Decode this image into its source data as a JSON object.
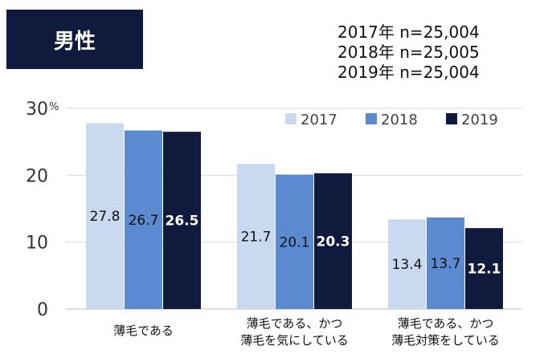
{
  "badge": {
    "label": "男性"
  },
  "sample_sizes": [
    "2017年 n=25,004",
    "2018年 n=25,005",
    "2019年 n=25,004"
  ],
  "colors": {
    "2017": "#c9d9f0",
    "2018": "#5b8ad0",
    "2019": "#0f1a3d",
    "badge": "#0f1a3d",
    "grid": "#d9d9d9"
  },
  "chart_data": {
    "type": "bar",
    "title": "",
    "xlabel": "",
    "ylabel": "",
    "ylim": [
      0,
      30
    ],
    "y_ticks": [
      "0",
      "10",
      "20",
      "30"
    ],
    "y_unit": "%",
    "grid": true,
    "legend_position": "top-right",
    "categories": [
      [
        "薄毛である"
      ],
      [
        "薄毛である、かつ",
        "薄毛を気にしている"
      ],
      [
        "薄毛である、かつ",
        "薄毛対策をしている"
      ]
    ],
    "series": [
      {
        "name": "2017",
        "values": [
          27.8,
          21.7,
          13.4
        ],
        "labels": [
          "27.8",
          "21.7",
          "13.4"
        ]
      },
      {
        "name": "2018",
        "values": [
          26.7,
          20.1,
          13.7
        ],
        "labels": [
          "26.7",
          "20.1",
          "13.7"
        ]
      },
      {
        "name": "2019",
        "values": [
          26.5,
          20.3,
          12.1
        ],
        "labels": [
          "26.5",
          "20.3",
          "12.1"
        ]
      }
    ]
  }
}
